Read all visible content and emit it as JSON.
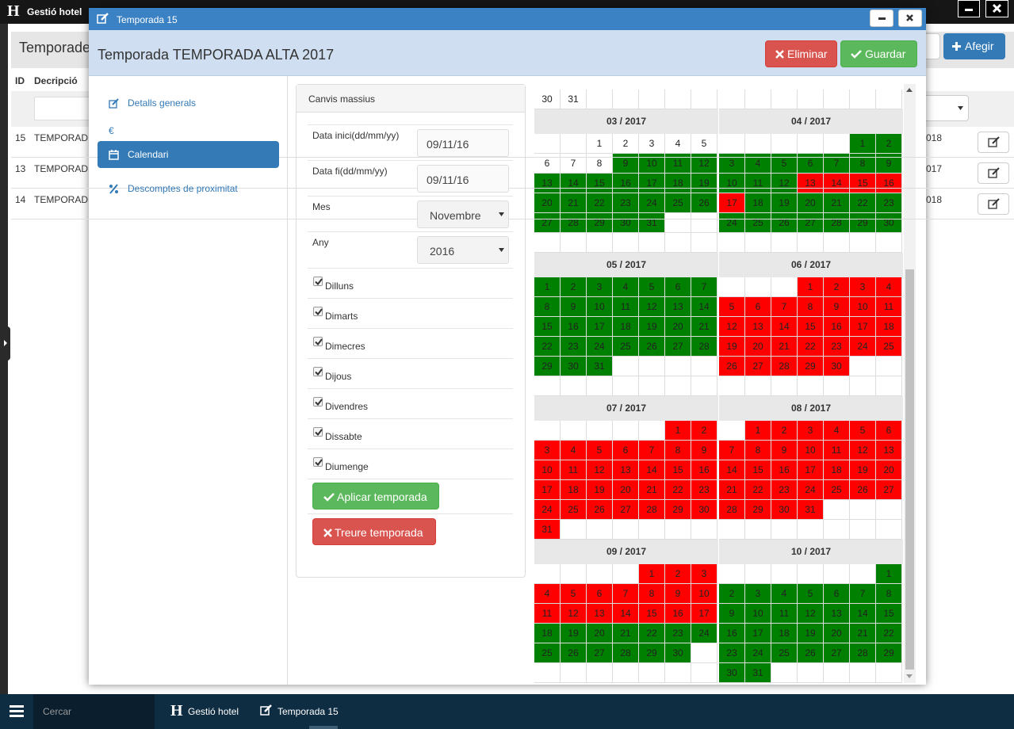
{
  "app": {
    "logo": "H",
    "title": "Gestió hotel"
  },
  "background": {
    "title": "Temporade",
    "add_button": "Afegir",
    "columns": [
      "ID",
      "Decripció"
    ],
    "rows": [
      [
        15,
        "TEMPORAD",
        "018"
      ],
      [
        13,
        "TEMPORAD",
        "017"
      ],
      [
        14,
        "TEMPORAD",
        "018"
      ]
    ]
  },
  "modal": {
    "window_title": "Temporada 15",
    "header": "Temporada TEMPORADA ALTA 2017",
    "delete_button": "Eliminar",
    "save_button": "Guardar",
    "nav": [
      "Detalls generals",
      "€",
      "Calendari",
      "Descomptes de proximitat"
    ],
    "active_nav": 2
  },
  "form": {
    "title": "Canvis massius",
    "fields": [
      {
        "label": "Data inici(dd/mm/yy)",
        "value": "09/11/16"
      },
      {
        "label": "Data fi(dd/mm/yy)",
        "value": "09/11/16"
      },
      {
        "label": "Mes",
        "value": "Novembre",
        "select": true
      },
      {
        "label": "Any",
        "value": "2016",
        "select": true
      }
    ],
    "weekdays": [
      "Dilluns",
      "Dimarts",
      "Dimecres",
      "Dijous",
      "Divendres",
      "Dissabte",
      "Diumenge"
    ],
    "apply_button": "Aplicar temporada",
    "remove_button": "Treure temporada"
  },
  "calendar": {
    "top_days": [
      30,
      31
    ],
    "months": [
      {
        "title": "03 / 2017",
        "days": [
          1,
          2,
          3,
          4,
          5,
          6,
          7,
          8,
          9,
          10,
          11,
          12,
          13,
          14,
          15,
          16,
          17,
          18,
          19,
          20,
          21,
          22,
          23,
          24,
          25,
          26,
          27,
          28,
          29,
          30,
          31
        ],
        "colors": [
          "white",
          "white",
          "white",
          "white",
          "white",
          "white",
          "white",
          "white",
          "green",
          "green",
          "green",
          "green",
          "green",
          "green",
          "green",
          "green",
          "green",
          "green",
          "green",
          "green",
          "green",
          "green",
          "green",
          "green",
          "green",
          "green",
          "green",
          "green",
          "green",
          "green",
          "green"
        ]
      },
      {
        "title": "04 / 2017",
        "days": [
          1,
          2,
          3,
          4,
          5,
          6,
          7,
          8,
          9,
          10,
          11,
          12,
          13,
          14,
          15,
          16,
          17,
          18,
          19,
          20,
          21,
          22,
          23,
          24,
          25,
          26,
          27,
          28,
          29,
          30
        ],
        "colors": [
          "green",
          "green",
          "green",
          "green",
          "green",
          "green",
          "green",
          "green",
          "green",
          "green",
          "green",
          "green",
          "red",
          "red",
          "red",
          "red",
          "red",
          "green",
          "green",
          "green",
          "green",
          "green",
          "green",
          "green",
          "green",
          "green",
          "green",
          "green",
          "green",
          "green"
        ]
      },
      {
        "title": "05 / 2017",
        "days": [
          1,
          2,
          3,
          4,
          5,
          6,
          7,
          8,
          9,
          10,
          11,
          12,
          13,
          14,
          15,
          16,
          17,
          18,
          19,
          20,
          21,
          22,
          23,
          24,
          25,
          26,
          27,
          28,
          29,
          30,
          31
        ],
        "colors": [
          "green",
          "green",
          "green",
          "green",
          "green",
          "green",
          "green",
          "green",
          "green",
          "green",
          "green",
          "green",
          "green",
          "green",
          "green",
          "green",
          "green",
          "green",
          "green",
          "green",
          "green",
          "green",
          "green",
          "green",
          "green",
          "green",
          "green",
          "green",
          "green",
          "green",
          "green"
        ]
      },
      {
        "title": "06 / 2017",
        "days": [
          1,
          2,
          3,
          4,
          5,
          6,
          7,
          8,
          9,
          10,
          11,
          12,
          13,
          14,
          15,
          16,
          17,
          18,
          19,
          20,
          21,
          22,
          23,
          24,
          25,
          26,
          27,
          28,
          29,
          30
        ],
        "colors": [
          "red",
          "red",
          "red",
          "red",
          "red",
          "red",
          "red",
          "red",
          "red",
          "red",
          "red",
          "red",
          "red",
          "red",
          "red",
          "red",
          "red",
          "red",
          "red",
          "red",
          "red",
          "red",
          "red",
          "red",
          "red",
          "red",
          "red",
          "red",
          "red",
          "red"
        ]
      },
      {
        "title": "07 / 2017",
        "days": [
          1,
          2,
          3,
          4,
          5,
          6,
          7,
          8,
          9,
          10,
          11,
          12,
          13,
          14,
          15,
          16,
          17,
          18,
          19,
          20,
          21,
          22,
          23,
          24,
          25,
          26,
          27,
          28,
          29,
          30,
          31
        ],
        "colors": [
          "red",
          "red",
          "red",
          "red",
          "red",
          "red",
          "red",
          "red",
          "red",
          "red",
          "red",
          "red",
          "red",
          "red",
          "red",
          "red",
          "red",
          "red",
          "red",
          "red",
          "red",
          "red",
          "red",
          "red",
          "red",
          "red",
          "red",
          "red",
          "red",
          "red",
          "red"
        ]
      },
      {
        "title": "08 / 2017",
        "days": [
          1,
          2,
          3,
          4,
          5,
          6,
          7,
          8,
          9,
          10,
          11,
          12,
          13,
          14,
          15,
          16,
          17,
          18,
          19,
          20,
          21,
          22,
          23,
          24,
          25,
          26,
          27,
          28,
          29,
          30,
          31
        ],
        "colors": [
          "red",
          "red",
          "red",
          "red",
          "red",
          "red",
          "red",
          "red",
          "red",
          "red",
          "red",
          "red",
          "red",
          "red",
          "red",
          "red",
          "red",
          "red",
          "red",
          "red",
          "red",
          "red",
          "red",
          "red",
          "red",
          "red",
          "red",
          "red",
          "red",
          "red",
          "red"
        ]
      },
      {
        "title": "09 / 2017",
        "days": [
          1,
          2,
          3,
          4,
          5,
          6,
          7,
          8,
          9,
          10,
          11,
          12,
          13,
          14,
          15,
          16,
          17,
          18,
          19,
          20,
          21,
          22,
          23,
          24,
          25,
          26,
          27,
          28,
          29,
          30
        ],
        "colors": [
          "red",
          "red",
          "red",
          "red",
          "red",
          "red",
          "red",
          "red",
          "red",
          "red",
          "red",
          "red",
          "red",
          "red",
          "red",
          "red",
          "red",
          "green",
          "green",
          "green",
          "green",
          "green",
          "green",
          "green",
          "green",
          "green",
          "green",
          "green",
          "green",
          "green"
        ]
      },
      {
        "title": "10 / 2017",
        "days": [
          1,
          2,
          3,
          4,
          5,
          6,
          7,
          8,
          9,
          10,
          11,
          12,
          13,
          14,
          15,
          16,
          17,
          18,
          19,
          20,
          21,
          22,
          23,
          24,
          25,
          26,
          27,
          28,
          29,
          30,
          31
        ],
        "colors": [
          "green",
          "green",
          "green",
          "green",
          "green",
          "green",
          "green",
          "green",
          "green",
          "green",
          "green",
          "green",
          "green",
          "green",
          "green",
          "green",
          "green",
          "green",
          "green",
          "green",
          "green",
          "green",
          "green",
          "green",
          "green",
          "green",
          "green",
          "green",
          "green",
          "green",
          "green"
        ]
      }
    ]
  },
  "taskbar": {
    "search": "Cercar",
    "items": [
      "Gestió hotel",
      "Temporada 15"
    ]
  }
}
